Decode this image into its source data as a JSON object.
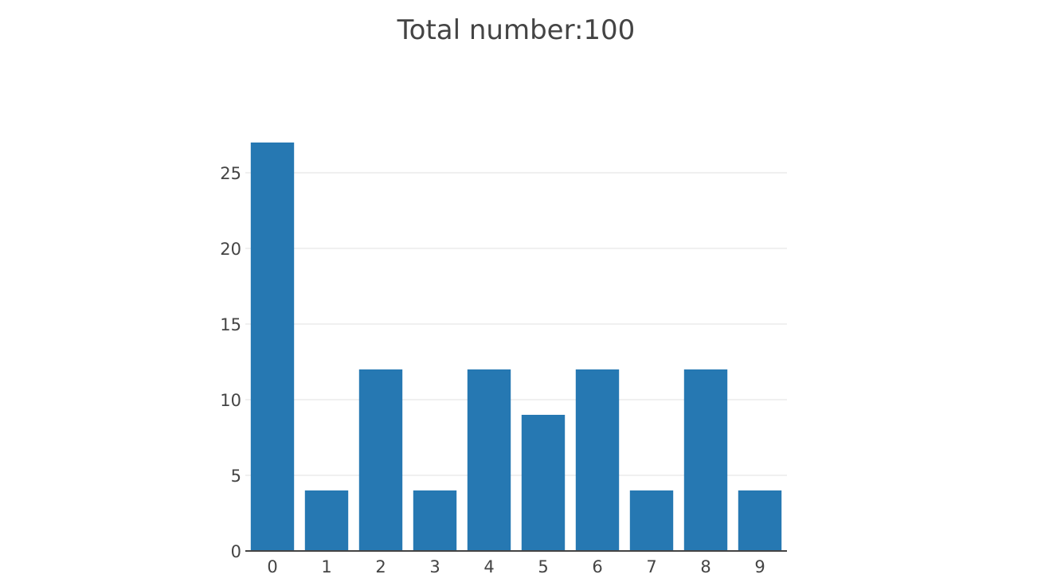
{
  "chart_data": {
    "type": "bar",
    "title": "Total number:100",
    "xlabel": "",
    "ylabel": "",
    "categories": [
      "0",
      "1",
      "2",
      "3",
      "4",
      "5",
      "6",
      "7",
      "8",
      "9"
    ],
    "values": [
      27,
      4,
      12,
      4,
      12,
      9,
      12,
      4,
      12,
      4
    ],
    "ylim": [
      0,
      27
    ],
    "yticks": [
      0,
      5,
      10,
      15,
      20,
      25
    ],
    "grid": true,
    "legend": "none",
    "bar_color": "#2678b2",
    "grid_color": "#ebebeb",
    "axis_color": "#444444"
  }
}
